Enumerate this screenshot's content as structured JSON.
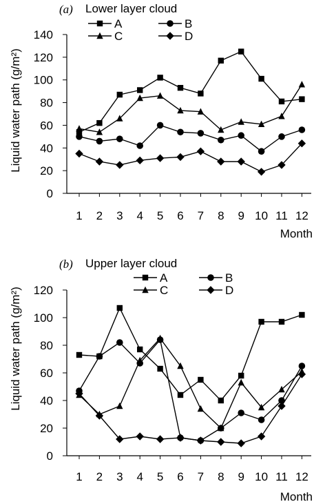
{
  "chart_data": [
    {
      "type": "line",
      "panel_label": "(a)",
      "title": "Lower layer cloud",
      "xlabel": "Month",
      "ylabel": "Liquid water path (g/m²)",
      "x": [
        1,
        2,
        3,
        4,
        5,
        6,
        7,
        8,
        9,
        10,
        11,
        12
      ],
      "x_tick_labels": [
        "1",
        "2",
        "3",
        "4",
        "5",
        "6",
        "7",
        "8",
        "9",
        "10",
        "11",
        "12"
      ],
      "ylim": [
        0,
        140
      ],
      "y_ticks": [
        0,
        20,
        40,
        60,
        80,
        100,
        120,
        140
      ],
      "y_tick_labels": [
        "0",
        "20",
        "40",
        "60",
        "80",
        "100",
        "120",
        "140"
      ],
      "legend_position": "top-left",
      "series": [
        {
          "name": "A",
          "marker": "square",
          "values": [
            54,
            62,
            87,
            91,
            102,
            93,
            88,
            117,
            125,
            101,
            81,
            83
          ]
        },
        {
          "name": "B",
          "marker": "circle",
          "values": [
            50,
            46,
            48,
            42,
            60,
            54,
            53,
            47,
            51,
            37,
            50,
            56
          ]
        },
        {
          "name": "C",
          "marker": "triangle",
          "values": [
            57,
            54,
            66,
            84,
            86,
            73,
            72,
            56,
            63,
            61,
            68,
            96
          ]
        },
        {
          "name": "D",
          "marker": "diamond",
          "values": [
            35,
            28,
            25,
            29,
            31,
            32,
            37,
            28,
            28,
            19,
            25,
            44
          ]
        }
      ]
    },
    {
      "type": "line",
      "panel_label": "(b)",
      "title": "Upper layer cloud",
      "xlabel": "Month",
      "ylabel": "Liquid water path (g/m²)",
      "x": [
        1,
        2,
        3,
        4,
        5,
        6,
        7,
        8,
        9,
        10,
        11,
        12
      ],
      "x_tick_labels": [
        "1",
        "2",
        "3",
        "4",
        "5",
        "6",
        "7",
        "8",
        "9",
        "10",
        "11",
        "12"
      ],
      "ylim": [
        0,
        120
      ],
      "y_ticks": [
        0,
        20,
        40,
        60,
        80,
        100,
        120
      ],
      "y_tick_labels": [
        "0",
        "20",
        "40",
        "60",
        "80",
        "100",
        "120"
      ],
      "legend_position": "top-center",
      "series": [
        {
          "name": "A",
          "marker": "square",
          "values": [
            73,
            72,
            107,
            77,
            63,
            44,
            55,
            40,
            58,
            97,
            97,
            102
          ]
        },
        {
          "name": "B",
          "marker": "circle",
          "values": [
            47,
            72,
            82,
            67,
            84,
            13,
            11,
            20,
            31,
            26,
            40,
            65
          ]
        },
        {
          "name": "C",
          "marker": "triangle",
          "values": [
            44,
            30,
            36,
            69,
            85,
            65,
            34,
            20,
            53,
            35,
            48,
            61
          ]
        },
        {
          "name": "D",
          "marker": "diamond",
          "values": [
            45,
            29,
            12,
            14,
            12,
            13,
            11,
            10,
            9,
            14,
            36,
            59
          ]
        }
      ]
    }
  ]
}
